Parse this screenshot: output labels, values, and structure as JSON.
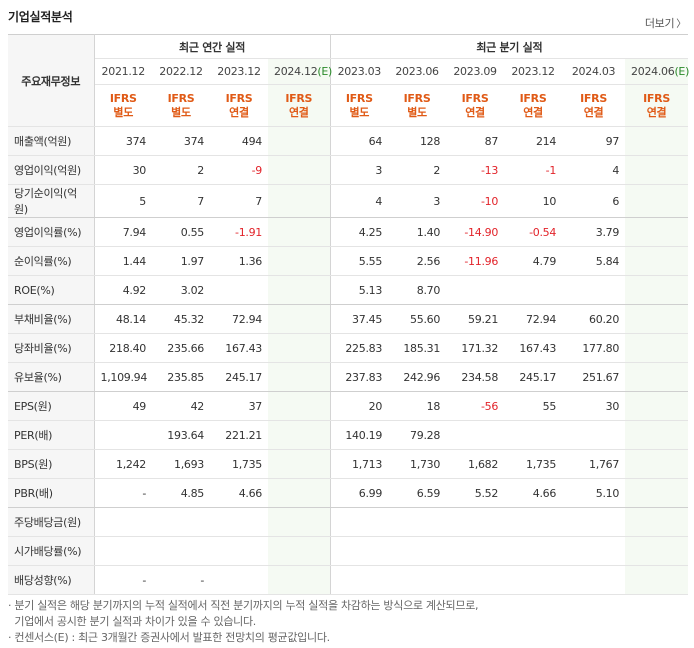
{
  "header": {
    "title": "기업실적분석",
    "more_label": "더보기",
    "more_chevron": "〉"
  },
  "table": {
    "row_header_label": "주요재무정보",
    "group_annual": "최근 연간 실적",
    "group_quarter": "최근 분기 실적",
    "periods": [
      "2021.12",
      "2022.12",
      "2023.12",
      "2024.12",
      "2023.03",
      "2023.06",
      "2023.09",
      "2023.12",
      "2024.03",
      "2024.06"
    ],
    "estimate_marker": "(E)",
    "ifrs_top": [
      "IFRS",
      "IFRS",
      "IFRS",
      "IFRS",
      "IFRS",
      "IFRS",
      "IFRS",
      "IFRS",
      "IFRS",
      "IFRS"
    ],
    "ifrs_bottom": [
      "별도",
      "별도",
      "연결",
      "연결",
      "별도",
      "별도",
      "연결",
      "연결",
      "연결",
      "연결"
    ],
    "rows": [
      {
        "label": "매출액(억원)",
        "values": [
          "374",
          "374",
          "494",
          "",
          "64",
          "128",
          "87",
          "214",
          "97",
          ""
        ]
      },
      {
        "label": "영업이익(억원)",
        "values": [
          "30",
          "2",
          "-9",
          "",
          "3",
          "2",
          "-13",
          "-1",
          "4",
          ""
        ]
      },
      {
        "label": "당기순이익(억원)",
        "values": [
          "5",
          "7",
          "7",
          "",
          "4",
          "3",
          "-10",
          "10",
          "6",
          ""
        ]
      },
      {
        "label": "영업이익률(%)",
        "values": [
          "7.94",
          "0.55",
          "-1.91",
          "",
          "4.25",
          "1.40",
          "-14.90",
          "-0.54",
          "3.79",
          ""
        ]
      },
      {
        "label": "순이익률(%)",
        "values": [
          "1.44",
          "1.97",
          "1.36",
          "",
          "5.55",
          "2.56",
          "-11.96",
          "4.79",
          "5.84",
          ""
        ]
      },
      {
        "label": "ROE(%)",
        "values": [
          "4.92",
          "3.02",
          "",
          "",
          "5.13",
          "8.70",
          "",
          "",
          "",
          ""
        ]
      },
      {
        "label": "부채비율(%)",
        "values": [
          "48.14",
          "45.32",
          "72.94",
          "",
          "37.45",
          "55.60",
          "59.21",
          "72.94",
          "60.20",
          ""
        ]
      },
      {
        "label": "당좌비율(%)",
        "values": [
          "218.40",
          "235.66",
          "167.43",
          "",
          "225.83",
          "185.31",
          "171.32",
          "167.43",
          "177.80",
          ""
        ]
      },
      {
        "label": "유보율(%)",
        "values": [
          "1,109.94",
          "235.85",
          "245.17",
          "",
          "237.83",
          "242.96",
          "234.58",
          "245.17",
          "251.67",
          ""
        ]
      },
      {
        "label": "EPS(원)",
        "values": [
          "49",
          "42",
          "37",
          "",
          "20",
          "18",
          "-56",
          "55",
          "30",
          ""
        ]
      },
      {
        "label": "PER(배)",
        "values": [
          "",
          "193.64",
          "221.21",
          "",
          "140.19",
          "79.28",
          "",
          "",
          "",
          ""
        ]
      },
      {
        "label": "BPS(원)",
        "values": [
          "1,242",
          "1,693",
          "1,735",
          "",
          "1,713",
          "1,730",
          "1,682",
          "1,735",
          "1,767",
          ""
        ]
      },
      {
        "label": "PBR(배)",
        "values": [
          "-",
          "4.85",
          "4.66",
          "",
          "6.99",
          "6.59",
          "5.52",
          "4.66",
          "5.10",
          ""
        ]
      },
      {
        "label": "주당배당금(원)",
        "values": [
          "",
          "",
          "",
          "",
          "",
          "",
          "",
          "",
          "",
          ""
        ]
      },
      {
        "label": "시가배당률(%)",
        "values": [
          "",
          "",
          "",
          "",
          "",
          "",
          "",
          "",
          "",
          ""
        ]
      },
      {
        "label": "배당성향(%)",
        "values": [
          "-",
          "-",
          "",
          "",
          "",
          "",
          "",
          "",
          "",
          ""
        ]
      }
    ]
  },
  "notes": [
    "· 분기 실적은 해당 분기까지의 누적 실적에서 직전 분기까지의 누적 실적을 차감하는 방식으로 계산되므로,",
    "  기업에서 공시한 분기 실적과 차이가 있을 수 있습니다.",
    "· 컨센서스(E) : 최근 3개월간 증권사에서 발표한 전망치의 평균값입니다."
  ],
  "colors": {
    "ifrs": "#e05a16",
    "negative": "#e2232a",
    "estimate_bg": "#f5faf3",
    "estimate_marker": "#2a8a2a",
    "label_bg": "#f6f6f6"
  }
}
